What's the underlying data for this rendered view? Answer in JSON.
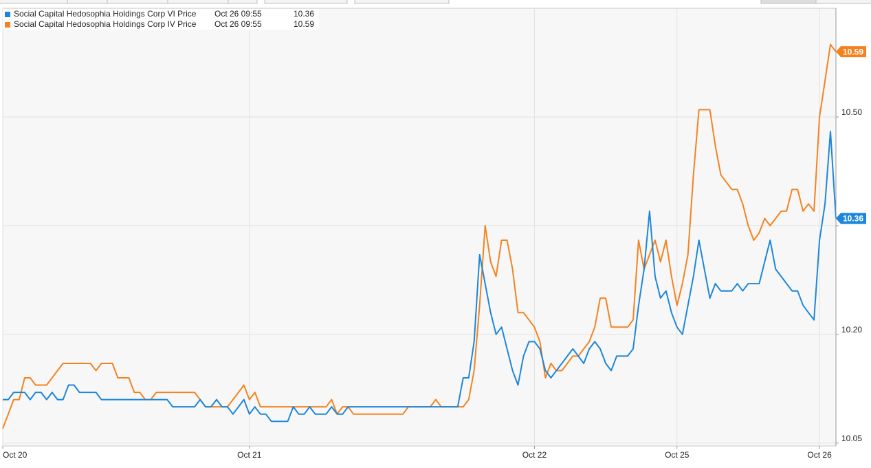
{
  "chart_data": {
    "type": "line",
    "last_time": "Oct 26 09:55",
    "categories": [
      "Oct 20",
      null,
      null,
      null,
      null,
      null,
      null,
      null,
      null,
      null,
      null,
      null,
      null,
      null,
      null,
      null,
      null,
      null,
      null,
      null,
      null,
      null,
      null,
      null,
      null,
      null,
      null,
      null,
      null,
      null,
      null,
      null,
      null,
      null,
      null,
      null,
      null,
      null,
      null,
      null,
      null,
      null,
      null,
      null,
      null,
      "Oct 21",
      null,
      null,
      null,
      null,
      null,
      null,
      null,
      null,
      null,
      null,
      null,
      null,
      null,
      null,
      null,
      null,
      null,
      null,
      null,
      null,
      null,
      null,
      null,
      null,
      null,
      null,
      null,
      null,
      null,
      null,
      null,
      null,
      null,
      null,
      null,
      null,
      null,
      null,
      null,
      null,
      null,
      null,
      null,
      null,
      null,
      null,
      null,
      null,
      null,
      null,
      null,
      "Oct 22",
      null,
      null,
      null,
      null,
      null,
      null,
      null,
      null,
      null,
      null,
      null,
      null,
      null,
      null,
      null,
      null,
      null,
      null,
      null,
      null,
      null,
      null,
      null,
      null,
      null,
      "Oct 25",
      null,
      null,
      null,
      null,
      null,
      null,
      null,
      null,
      null,
      null,
      null,
      null,
      null,
      null,
      null,
      null,
      null,
      null,
      null,
      null,
      null,
      null,
      null,
      null,
      null,
      "Oct 26",
      null,
      null,
      null
    ],
    "series": [
      {
        "name": "Social Capital Hedosophia Holdings Corp VI Price",
        "color": "#1c86dc",
        "values": [
          10.11,
          10.11,
          10.12,
          10.12,
          10.12,
          10.11,
          10.12,
          10.12,
          10.11,
          10.12,
          10.11,
          10.11,
          10.13,
          10.13,
          10.12,
          10.12,
          10.12,
          10.12,
          10.11,
          10.11,
          10.11,
          10.11,
          10.11,
          10.11,
          10.11,
          10.11,
          10.11,
          10.11,
          10.11,
          10.11,
          10.11,
          10.1,
          10.1,
          10.1,
          10.1,
          10.1,
          10.11,
          10.1,
          10.1,
          10.11,
          10.1,
          10.1,
          10.09,
          10.1,
          10.11,
          10.09,
          10.1,
          10.09,
          10.09,
          10.08,
          10.08,
          10.08,
          10.08,
          10.1,
          10.09,
          10.09,
          10.1,
          10.09,
          10.09,
          10.09,
          10.1,
          10.09,
          10.09,
          10.1,
          10.1,
          10.1,
          10.1,
          10.1,
          10.1,
          10.1,
          10.1,
          10.1,
          10.1,
          10.1,
          10.1,
          10.1,
          10.1,
          10.1,
          10.1,
          10.1,
          10.1,
          10.1,
          10.1,
          10.1,
          10.14,
          10.14,
          10.19,
          10.31,
          10.27,
          10.23,
          10.2,
          10.21,
          10.18,
          10.15,
          10.13,
          10.17,
          10.19,
          10.19,
          10.18,
          10.15,
          10.14,
          10.15,
          10.16,
          10.17,
          10.18,
          10.17,
          10.16,
          10.18,
          10.19,
          10.18,
          10.16,
          10.15,
          10.17,
          10.17,
          10.17,
          10.18,
          10.24,
          10.29,
          10.37,
          10.28,
          10.25,
          10.26,
          10.23,
          10.21,
          10.2,
          10.24,
          10.28,
          10.33,
          10.29,
          10.25,
          10.27,
          10.26,
          10.26,
          10.26,
          10.27,
          10.26,
          10.27,
          10.27,
          10.27,
          10.3,
          10.33,
          10.29,
          10.28,
          10.27,
          10.26,
          10.26,
          10.24,
          10.23,
          10.22,
          10.33,
          10.38,
          10.48,
          10.36
        ]
      },
      {
        "name": "Social Capital Hedosophia Holdings Corp IV Price",
        "color": "#f5821f",
        "values": [
          10.07,
          10.09,
          10.11,
          10.11,
          10.14,
          10.14,
          10.13,
          10.13,
          10.13,
          10.14,
          10.15,
          10.16,
          10.16,
          10.16,
          10.16,
          10.16,
          10.16,
          10.15,
          10.16,
          10.16,
          10.16,
          10.14,
          10.14,
          10.14,
          10.12,
          10.12,
          10.11,
          10.11,
          10.12,
          10.12,
          10.12,
          10.12,
          10.12,
          10.12,
          10.12,
          10.12,
          10.11,
          10.1,
          10.1,
          10.1,
          10.1,
          10.1,
          10.11,
          10.12,
          10.13,
          10.11,
          10.12,
          10.1,
          10.1,
          10.1,
          10.1,
          10.1,
          10.1,
          10.1,
          10.1,
          10.1,
          10.1,
          10.1,
          10.1,
          10.1,
          10.11,
          10.09,
          10.1,
          10.1,
          10.09,
          10.09,
          10.09,
          10.09,
          10.09,
          10.09,
          10.09,
          10.09,
          10.09,
          10.09,
          10.1,
          10.1,
          10.1,
          10.1,
          10.1,
          10.11,
          10.1,
          10.1,
          10.1,
          10.1,
          10.1,
          10.11,
          10.15,
          10.24,
          10.35,
          10.3,
          10.28,
          10.33,
          10.33,
          10.29,
          10.23,
          10.23,
          10.22,
          10.21,
          10.19,
          10.14,
          10.16,
          10.15,
          10.15,
          10.16,
          10.17,
          10.17,
          10.18,
          10.19,
          10.21,
          10.25,
          10.25,
          10.21,
          10.21,
          10.21,
          10.21,
          10.22,
          10.33,
          10.29,
          10.31,
          10.33,
          10.3,
          10.33,
          10.28,
          10.24,
          10.27,
          10.31,
          10.42,
          10.51,
          10.51,
          10.51,
          10.46,
          10.42,
          10.41,
          10.4,
          10.4,
          10.38,
          10.35,
          10.33,
          10.34,
          10.36,
          10.35,
          10.36,
          10.37,
          10.37,
          10.4,
          10.4,
          10.37,
          10.38,
          10.37,
          10.5,
          10.55,
          10.6,
          10.59
        ]
      }
    ],
    "ylim": [
      10.046,
      10.65
    ],
    "yticks": [
      10.05,
      {
        "value": 10.2,
        "label": "10.20"
      },
      {
        "value": 10.35,
        "label": "10.35"
      },
      {
        "value": 10.5,
        "label": "10.50"
      }
    ],
    "grid": true
  }
}
